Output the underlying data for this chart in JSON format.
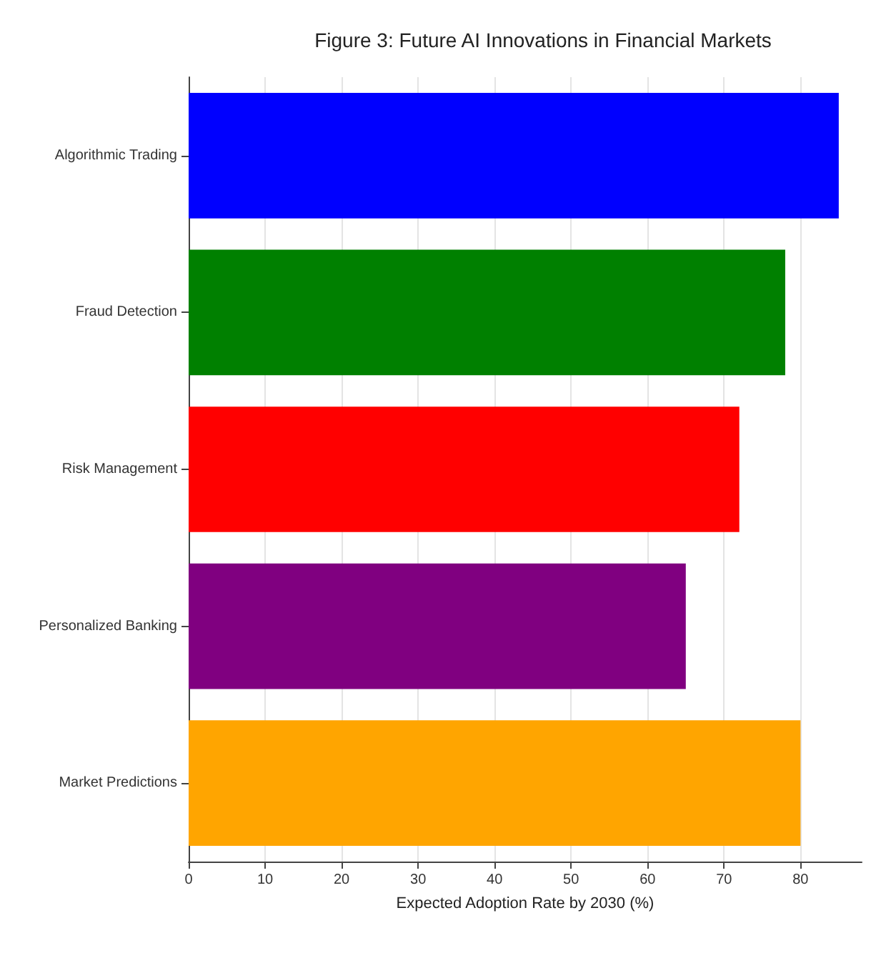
{
  "chart_data": {
    "type": "bar",
    "orientation": "horizontal",
    "title": "Figure 3: Future AI Innovations in Financial Markets",
    "xlabel": "Expected Adoption Rate by 2030 (%)",
    "categories": [
      "Algorithmic Trading",
      "Fraud Detection",
      "Risk Management",
      "Personalized Banking",
      "Market Predictions"
    ],
    "values": [
      85,
      78,
      72,
      65,
      80
    ],
    "colors": [
      "#0000ff",
      "#008000",
      "#ff0000",
      "#800080",
      "#ffa500"
    ],
    "xlim": [
      0,
      88
    ],
    "xticks": [
      0,
      10,
      20,
      30,
      40,
      50,
      60,
      70,
      80
    ],
    "grid": "x"
  }
}
